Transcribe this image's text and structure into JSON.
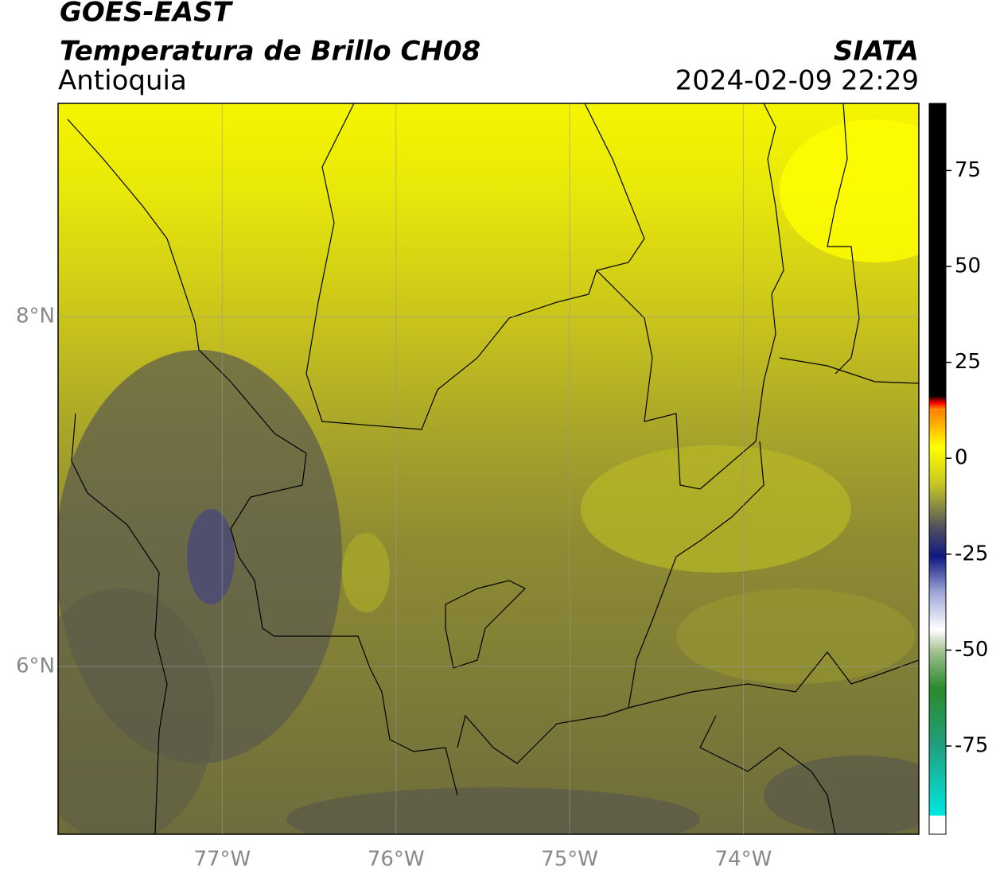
{
  "header": {
    "title": "GOES-EAST",
    "subtitle": "Temperatura de Brillo CH08",
    "region": "Antioquia",
    "source": "SIATA",
    "datetime": "2024-02-09 22:29"
  },
  "map": {
    "xlim": [
      -77.945,
      -72.99
    ],
    "ylim": [
      5.04,
      9.22
    ],
    "xticks": [
      {
        "value": -77,
        "label": "77°W"
      },
      {
        "value": -76,
        "label": "76°W"
      },
      {
        "value": -75,
        "label": "75°W"
      },
      {
        "value": -74,
        "label": "74°W"
      }
    ],
    "yticks": [
      {
        "value": 8,
        "label": "8°N"
      },
      {
        "value": 6,
        "label": "6°N"
      }
    ],
    "grid": true
  },
  "colorbar": {
    "lim": [
      -98,
      92.5
    ],
    "ticks": [
      75,
      50,
      25,
      0,
      -25,
      -50,
      -75
    ]
  }
}
